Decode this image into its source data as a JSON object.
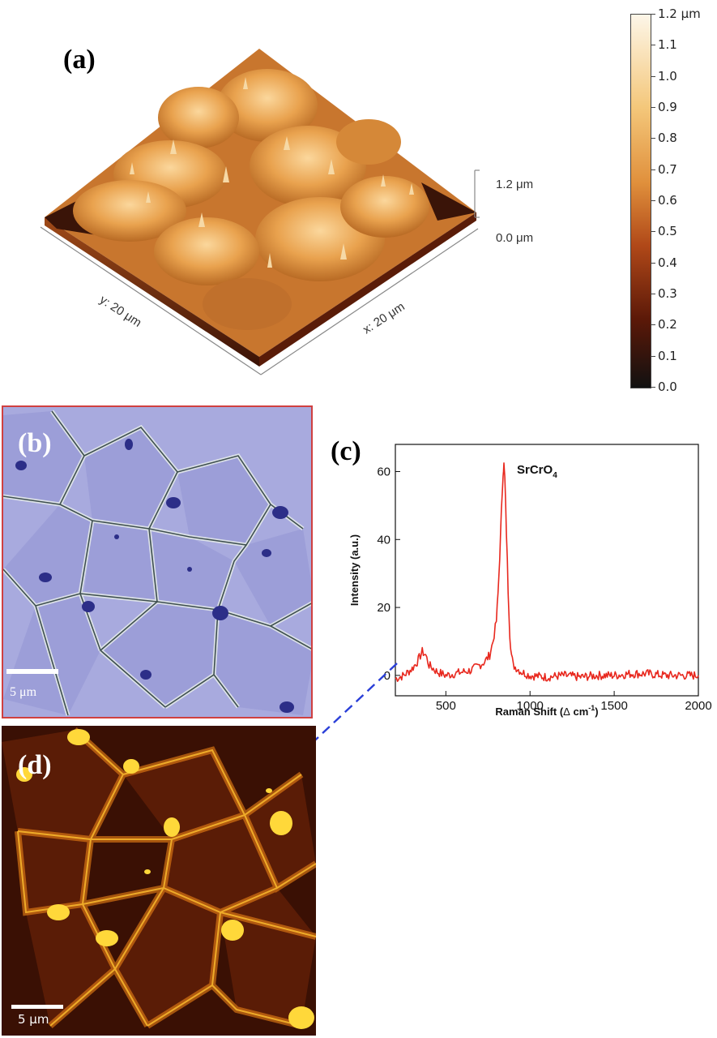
{
  "panels": {
    "a": {
      "label": "(a)",
      "x_axis": "x: 20 μm",
      "y_axis": "y: 20 μm",
      "z_top": "1.2 μm",
      "z_bottom": "0.0 μm"
    },
    "b": {
      "label": "(b)",
      "scale_bar": "5 μm",
      "border_color": "#d04040"
    },
    "c": {
      "label": "(c)",
      "peak_label_main": "SrCrO",
      "peak_label_sub": "4"
    },
    "d": {
      "label": "(d)",
      "scale_bar": "5 μm"
    }
  },
  "colorbar": {
    "ticks": [
      "1.2 μm",
      "1.1",
      "1.0",
      "0.9",
      "0.8",
      "0.7",
      "0.6",
      "0.5",
      "0.4",
      "0.3",
      "0.2",
      "0.1",
      "0.0"
    ],
    "colors": [
      "#fdf6e8",
      "#f4c77a",
      "#e0903c",
      "#b04818",
      "#5a1808",
      "#111111"
    ]
  },
  "chart_data": {
    "type": "line",
    "xlabel_prefix": "Raman Shift (",
    "xlabel_delta": "Δ",
    "xlabel_unit": " cm",
    "xlabel_sup": "-1",
    "xlabel_suffix": ")",
    "ylabel": "Intensity (a.u.)",
    "xlim": [
      200,
      2000
    ],
    "ylim": [
      -6,
      68
    ],
    "xticks": [
      500,
      1000,
      1500,
      2000
    ],
    "yticks": [
      0,
      20,
      40,
      60
    ],
    "color": "#e8281e",
    "x": [
      200,
      250,
      300,
      330,
      360,
      380,
      400,
      450,
      500,
      550,
      600,
      650,
      700,
      730,
      760,
      780,
      800,
      810,
      820,
      830,
      840,
      845,
      850,
      860,
      870,
      880,
      890,
      900,
      950,
      1000,
      1100,
      1200,
      1300,
      1400,
      1500,
      1600,
      1700,
      1800,
      1900,
      2000
    ],
    "y": [
      -1,
      0,
      2,
      4,
      7,
      6,
      3,
      1,
      0,
      0.5,
      1,
      1.5,
      3,
      4,
      6,
      10,
      16,
      24,
      35,
      48,
      60,
      62,
      58,
      42,
      25,
      12,
      6,
      3,
      1,
      0,
      -0.5,
      0,
      -0.5,
      0,
      0,
      0.5,
      0.5,
      0,
      0,
      0
    ]
  }
}
